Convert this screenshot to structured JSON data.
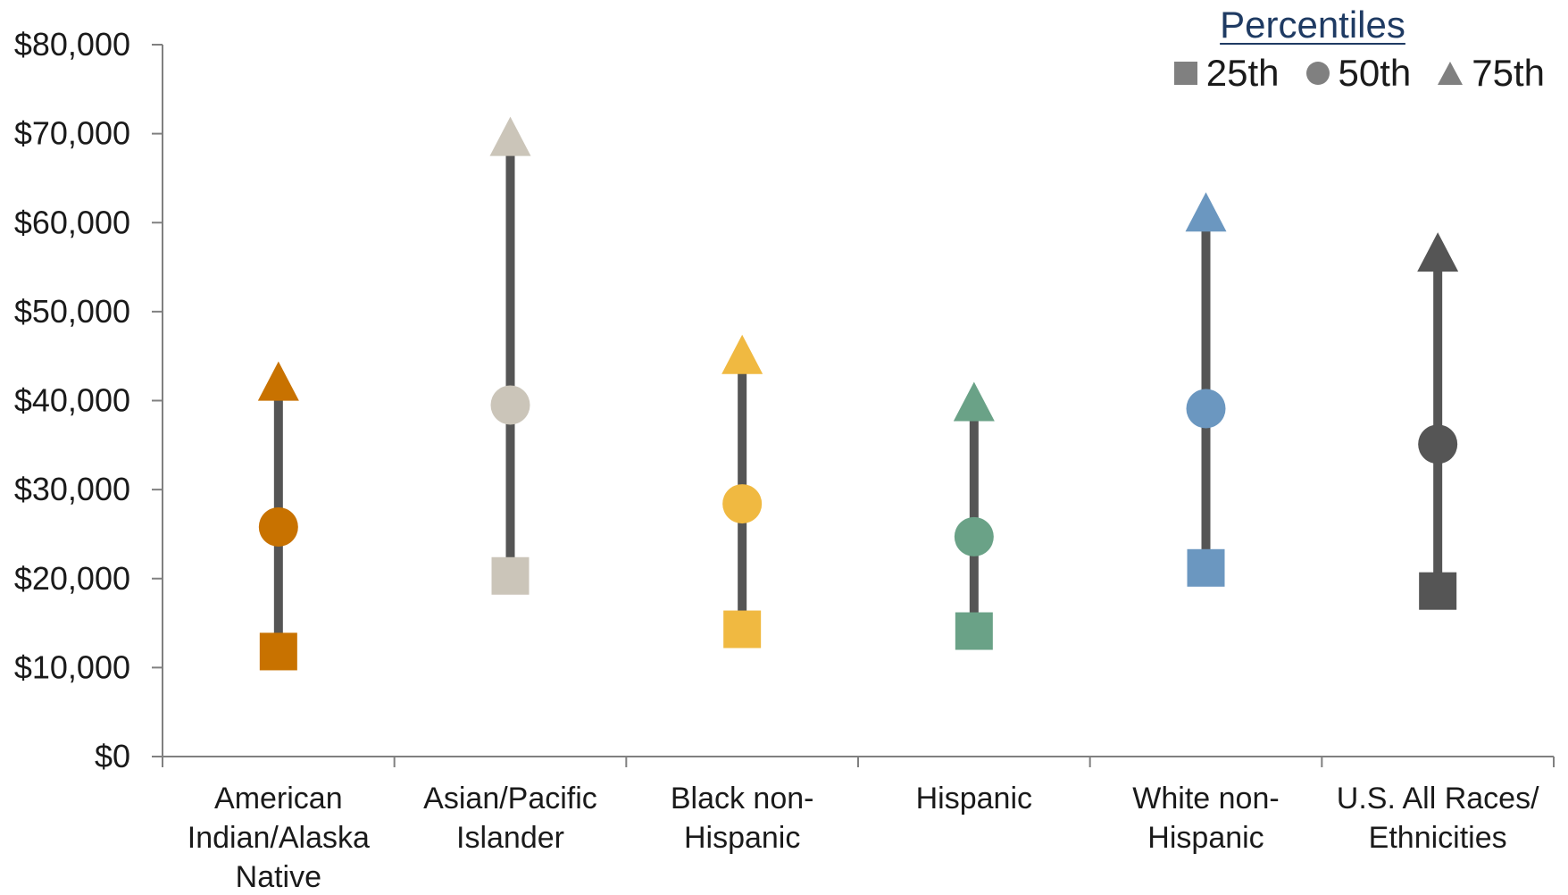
{
  "chart_data": {
    "type": "scatter",
    "title": "",
    "xlabel": "",
    "ylabel": "",
    "ylim": [
      0,
      80000
    ],
    "yticks": [
      "$0",
      "$10,000",
      "$20,000",
      "$30,000",
      "$40,000",
      "$50,000",
      "$60,000",
      "$70,000",
      "$80,000"
    ],
    "grid": false,
    "legend": {
      "title": "Percentiles",
      "placement": "top-right",
      "entries": [
        {
          "label": "25th",
          "marker": "square"
        },
        {
          "label": "50th",
          "marker": "circle"
        },
        {
          "label": "75th",
          "marker": "triangle"
        }
      ]
    },
    "categories": [
      {
        "lines": [
          "American",
          "Indian/Alaska",
          "Native"
        ],
        "color": "#c87200"
      },
      {
        "lines": [
          "Asian/Pacific",
          "Islander"
        ],
        "color": "#cbc5b9"
      },
      {
        "lines": [
          "Black non-",
          "Hispanic"
        ],
        "color": "#f0b941"
      },
      {
        "lines": [
          "Hispanic"
        ],
        "color": "#6aa287"
      },
      {
        "lines": [
          "White non-",
          "Hispanic"
        ],
        "color": "#6b97c0"
      },
      {
        "lines": [
          "U.S. All Races/",
          "Ethnicities"
        ],
        "color": "#555555"
      }
    ],
    "series": [
      {
        "name": "25th",
        "marker": "square",
        "values": [
          11800,
          20300,
          14300,
          14100,
          21200,
          18600
        ]
      },
      {
        "name": "50th",
        "marker": "circle",
        "values": [
          25800,
          39500,
          28400,
          24700,
          39100,
          35100
        ]
      },
      {
        "name": "75th",
        "marker": "triangle",
        "values": [
          42000,
          69500,
          45000,
          39700,
          61000,
          56500
        ]
      }
    ],
    "range_line_color": "#555555",
    "legend_marker_color": "#808080",
    "legend_title_color": "#1f3b63"
  }
}
